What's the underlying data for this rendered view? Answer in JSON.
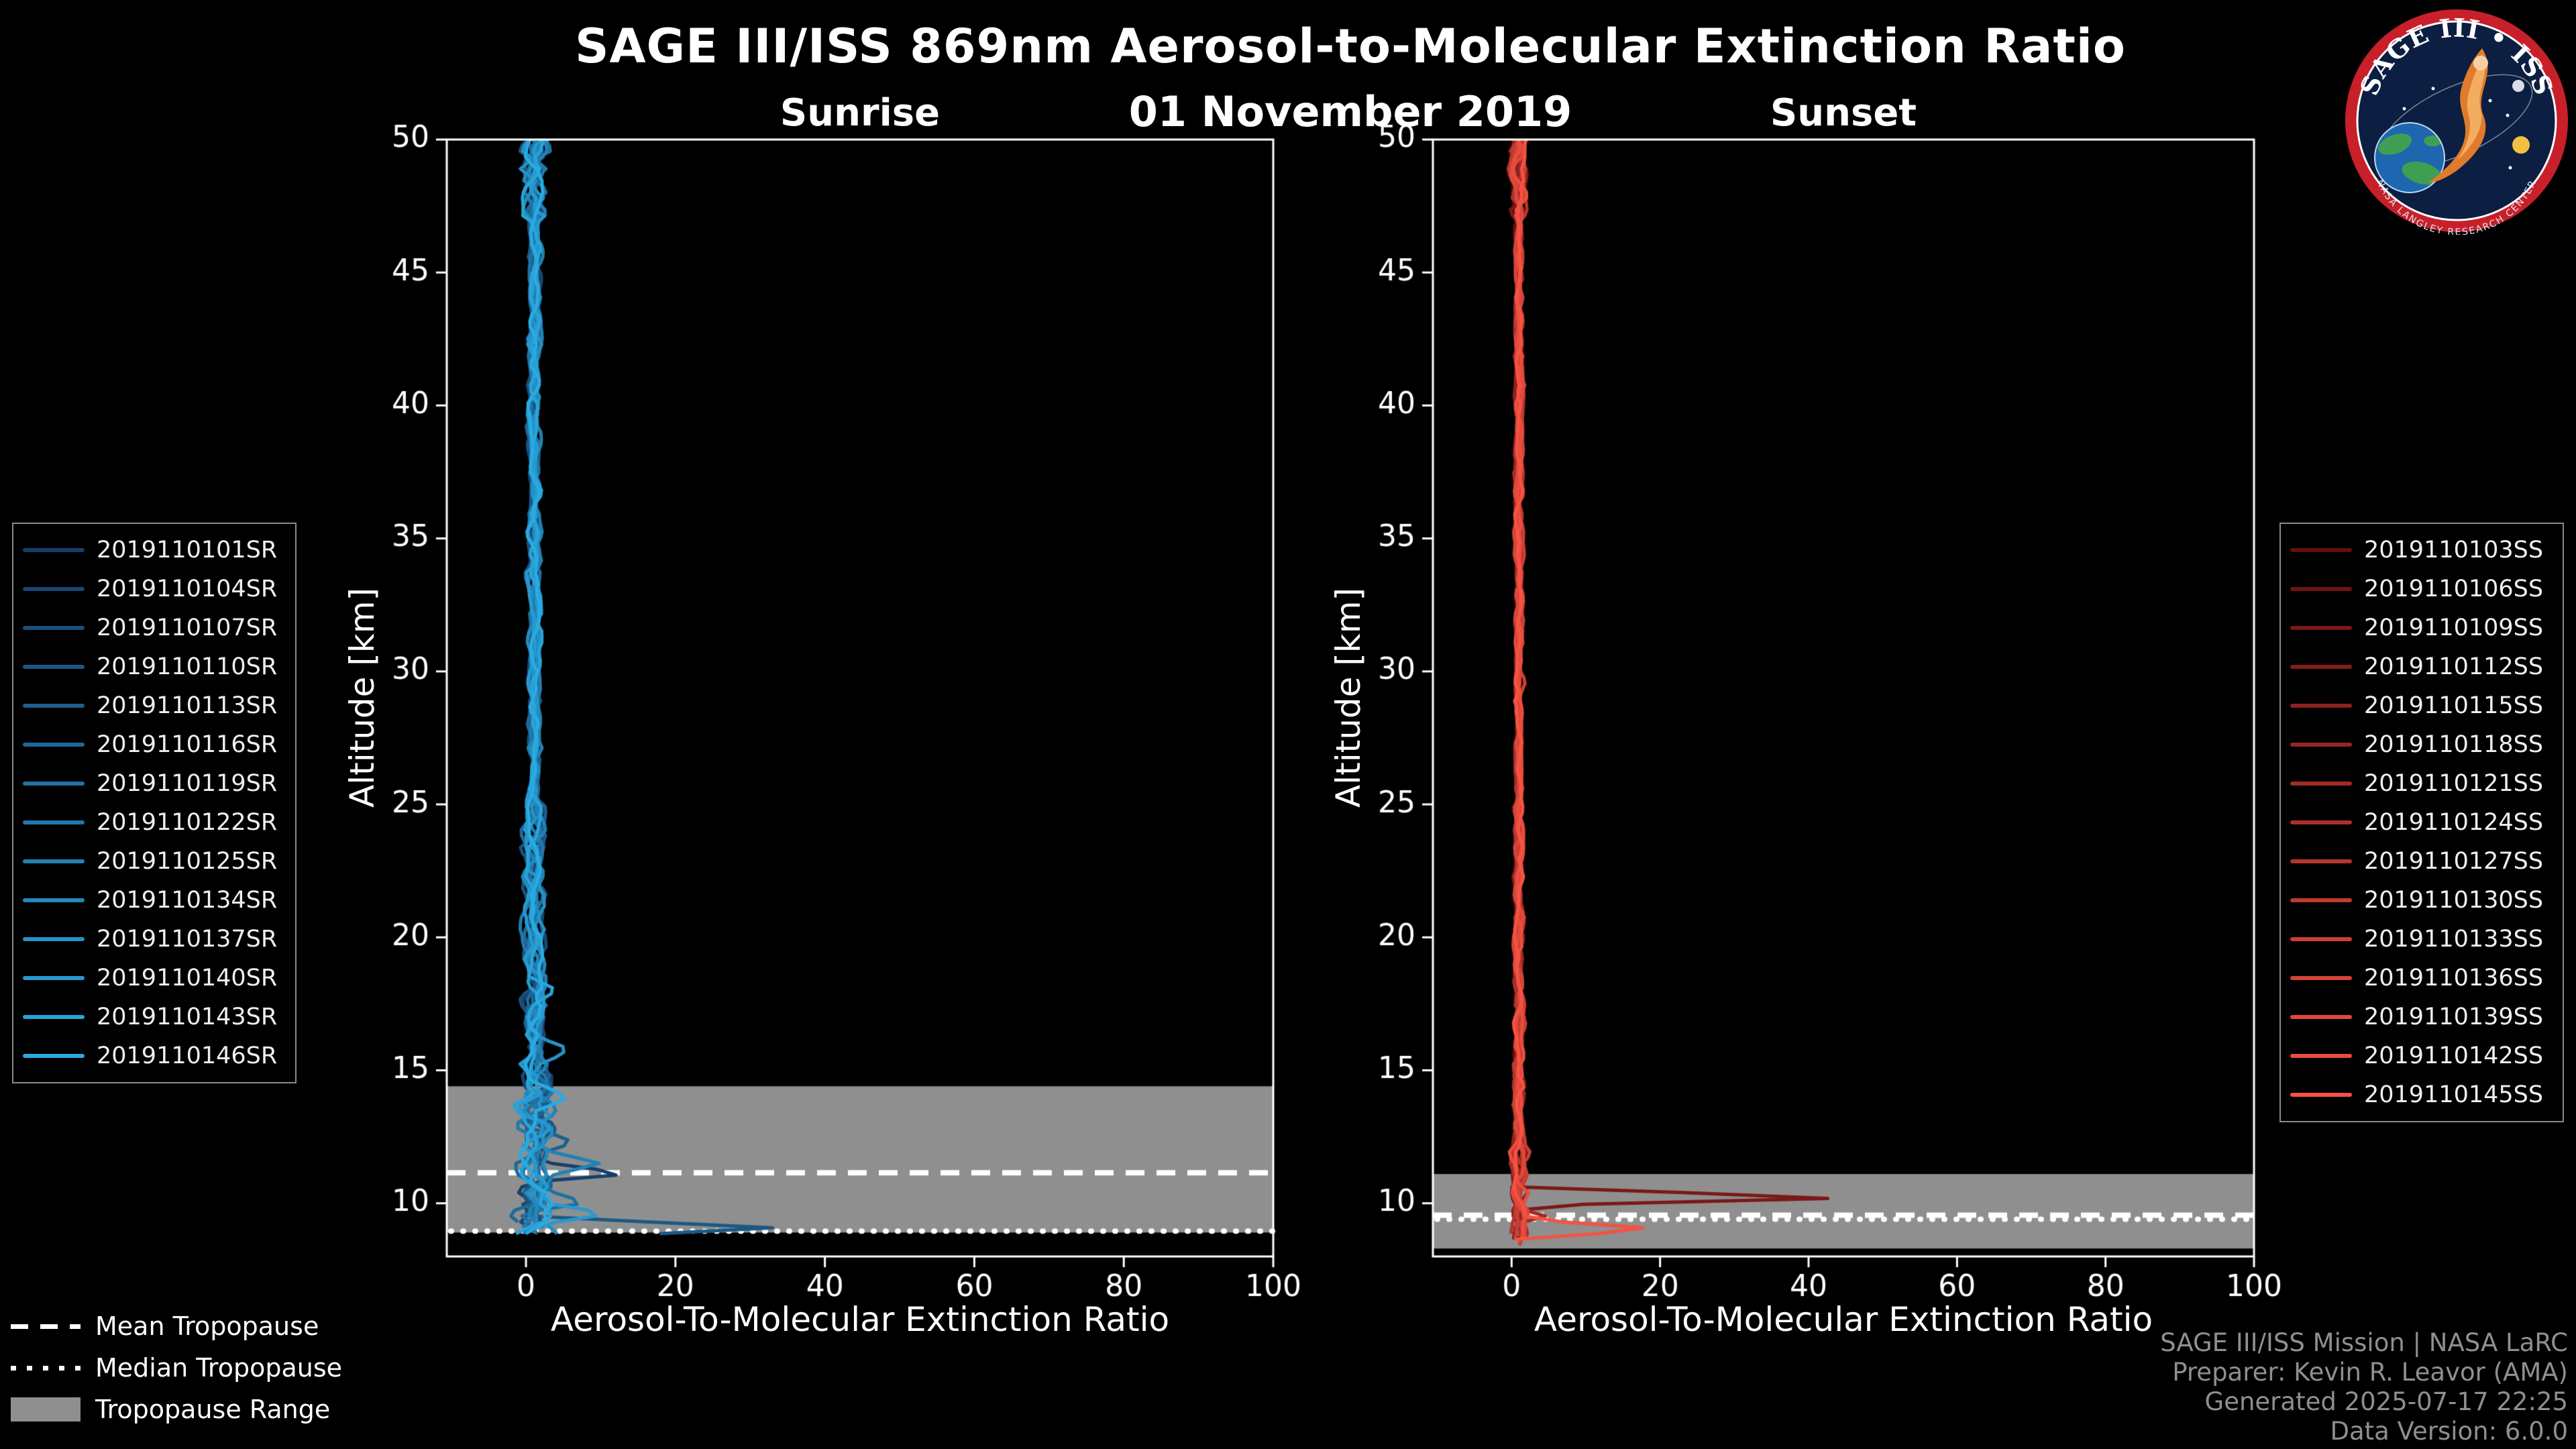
{
  "chart_data": {
    "type": "line",
    "title": "SAGE III/ISS 869nm Aerosol-to-Molecular Extinction Ratio",
    "subtitle": "01 November 2019",
    "xlabel": "Aerosol-To-Molecular Extinction Ratio",
    "ylabel": "Altitude [km]",
    "xlim": [
      -10.6,
      100
    ],
    "ylim": [
      8,
      50
    ],
    "xticks": [
      0,
      20,
      40,
      60,
      80,
      100
    ],
    "yticks": [
      10,
      15,
      20,
      25,
      30,
      35,
      40,
      45,
      50
    ],
    "grid": false,
    "tropopause_band_color": "#8f8f8f",
    "panels": [
      {
        "id": "sunrise",
        "label": "Sunrise",
        "legend_position": "left",
        "tropopause": {
          "mean_km": 11.15,
          "median_km": 8.95,
          "range_km": [
            8.9,
            14.4
          ]
        },
        "noise_bands": [
          [
            47,
            50.2,
            1.6
          ],
          [
            25,
            47,
            0.7
          ],
          [
            15,
            25,
            1.3
          ],
          [
            7,
            15,
            2.2
          ]
        ],
        "series": [
          {
            "name": "2019110101SR",
            "color": "#173F6A",
            "base": 1.0,
            "end_alt": 9.0,
            "peaks": [
              [
                11.6,
                0
              ],
              [
                11.1,
                11
              ],
              [
                10.8,
                0
              ]
            ]
          },
          {
            "name": "2019110104SR",
            "color": "#184773",
            "base": 1.2,
            "end_alt": 8.8,
            "peaks": []
          },
          {
            "name": "2019110107SR",
            "color": "#1A507C",
            "base": 0.8,
            "end_alt": 9.2,
            "peaks": []
          },
          {
            "name": "2019110110SR",
            "color": "#1B5886",
            "base": 1.1,
            "end_alt": 8.7,
            "peaks": [
              [
                9.5,
                0
              ],
              [
                9.0,
                38
              ],
              [
                8.75,
                0
              ]
            ]
          },
          {
            "name": "2019110113SR",
            "color": "#1D608F",
            "base": 1.3,
            "end_alt": 8.9,
            "peaks": [
              [
                13.0,
                0
              ],
              [
                12.5,
                5
              ],
              [
                12.0,
                0
              ]
            ]
          },
          {
            "name": "2019110116SR",
            "color": "#1E6998",
            "base": 0.9,
            "end_alt": 9.1,
            "peaks": []
          },
          {
            "name": "2019110119SR",
            "color": "#1F71A1",
            "base": 1.2,
            "end_alt": 8.8,
            "peaks": [
              [
                10.4,
                0
              ],
              [
                10.0,
                6
              ],
              [
                9.6,
                0
              ]
            ]
          },
          {
            "name": "2019110122SR",
            "color": "#2179AB",
            "base": 1.0,
            "end_alt": 9.0,
            "peaks": []
          },
          {
            "name": "2019110125SR",
            "color": "#2281B4",
            "base": 1.4,
            "end_alt": 8.7,
            "peaks": [
              [
                12.0,
                0
              ],
              [
                11.5,
                7
              ],
              [
                11.0,
                0
              ]
            ]
          },
          {
            "name": "2019110134SR",
            "color": "#238ABD",
            "base": 1.1,
            "end_alt": 8.9,
            "peaks": []
          },
          {
            "name": "2019110137SR",
            "color": "#2592C6",
            "base": 1.3,
            "end_alt": 8.8,
            "peaks": [
              [
                16.5,
                0
              ],
              [
                15.8,
                5
              ],
              [
                15.2,
                0
              ]
            ]
          },
          {
            "name": "2019110140SR",
            "color": "#269AD0",
            "base": 1.0,
            "end_alt": 9.0,
            "peaks": [
              [
                10.0,
                0
              ],
              [
                9.6,
                7
              ],
              [
                9.2,
                0
              ]
            ]
          },
          {
            "name": "2019110143SR",
            "color": "#28A3D9",
            "base": 1.2,
            "end_alt": 8.7,
            "peaks": [
              [
                18.6,
                0
              ],
              [
                18.0,
                4
              ],
              [
                17.4,
                0
              ]
            ]
          },
          {
            "name": "2019110146SR",
            "color": "#29ABE2",
            "base": 1.1,
            "end_alt": 8.8,
            "peaks": [
              [
                14.6,
                0
              ],
              [
                14.0,
                5
              ],
              [
                13.5,
                0
              ]
            ]
          }
        ]
      },
      {
        "id": "sunset",
        "label": "Sunset",
        "legend_position": "right",
        "tropopause": {
          "mean_km": 9.55,
          "median_km": 9.4,
          "range_km": [
            8.3,
            11.1
          ]
        },
        "noise_bands": [
          [
            47,
            50.2,
            1.0
          ],
          [
            25,
            47,
            0.45
          ],
          [
            12,
            25,
            0.6
          ],
          [
            7,
            12,
            1.0
          ]
        ],
        "series": [
          {
            "name": "2019110103SS",
            "color": "#640F0F",
            "base": 0.8,
            "end_alt": 8.6,
            "peaks": []
          },
          {
            "name": "2019110106SS",
            "color": "#6E1413",
            "base": 1.0,
            "end_alt": 8.5,
            "peaks": []
          },
          {
            "name": "2019110109SS",
            "color": "#791916",
            "base": 0.9,
            "end_alt": 8.7,
            "peaks": [
              [
                10.6,
                0
              ],
              [
                10.2,
                45
              ],
              [
                9.9,
                0
              ]
            ]
          },
          {
            "name": "2019110112SS",
            "color": "#831D1A",
            "base": 1.1,
            "end_alt": 8.5,
            "peaks": []
          },
          {
            "name": "2019110115SS",
            "color": "#8D221E",
            "base": 0.8,
            "end_alt": 8.6,
            "peaks": []
          },
          {
            "name": "2019110118SS",
            "color": "#972721",
            "base": 1.0,
            "end_alt": 8.4,
            "peaks": []
          },
          {
            "name": "2019110121SS",
            "color": "#A22C25",
            "base": 0.9,
            "end_alt": 8.6,
            "peaks": [
              [
                9.8,
                0
              ],
              [
                9.5,
                4
              ],
              [
                9.2,
                0
              ]
            ]
          },
          {
            "name": "2019110124SS",
            "color": "#AC3129",
            "base": 1.1,
            "end_alt": 8.5,
            "peaks": []
          },
          {
            "name": "2019110127SS",
            "color": "#B6352C",
            "base": 0.9,
            "end_alt": 8.7,
            "peaks": []
          },
          {
            "name": "2019110130SS",
            "color": "#C13A30",
            "base": 1.0,
            "end_alt": 8.5,
            "peaks": []
          },
          {
            "name": "2019110133SS",
            "color": "#CB3F33",
            "base": 1.2,
            "end_alt": 8.6,
            "peaks": []
          },
          {
            "name": "2019110136SS",
            "color": "#D54437",
            "base": 0.9,
            "end_alt": 8.4,
            "peaks": []
          },
          {
            "name": "2019110139SS",
            "color": "#DF483B",
            "base": 1.0,
            "end_alt": 8.6,
            "peaks": []
          },
          {
            "name": "2019110142SS",
            "color": "#EA4D3E",
            "base": 1.1,
            "end_alt": 8.5,
            "peaks": []
          },
          {
            "name": "2019110145SS",
            "color": "#F45242",
            "base": 1.0,
            "end_alt": 8.6,
            "peaks": [
              [
                9.4,
                0
              ],
              [
                9.0,
                21
              ],
              [
                8.7,
                0
              ]
            ]
          }
        ]
      }
    ],
    "tropopause_legend": [
      {
        "style": "dashed",
        "label": "Mean Tropopause"
      },
      {
        "style": "dotted",
        "label": "Median Tropopause"
      },
      {
        "style": "patch",
        "label": "Tropopause Range",
        "color": "#8f8f8f"
      }
    ]
  },
  "logo": {
    "top_text": "SAGE III • ISS",
    "bottom_text": "NASA LANGLEY RESEARCH CENTER"
  },
  "credits": {
    "lines": [
      "SAGE III/ISS Mission | NASA LaRC",
      "Preparer: Kevin R. Leavor (AMA)",
      "Generated 2025-07-17 22:25",
      "Data Version: 6.0.0"
    ]
  }
}
